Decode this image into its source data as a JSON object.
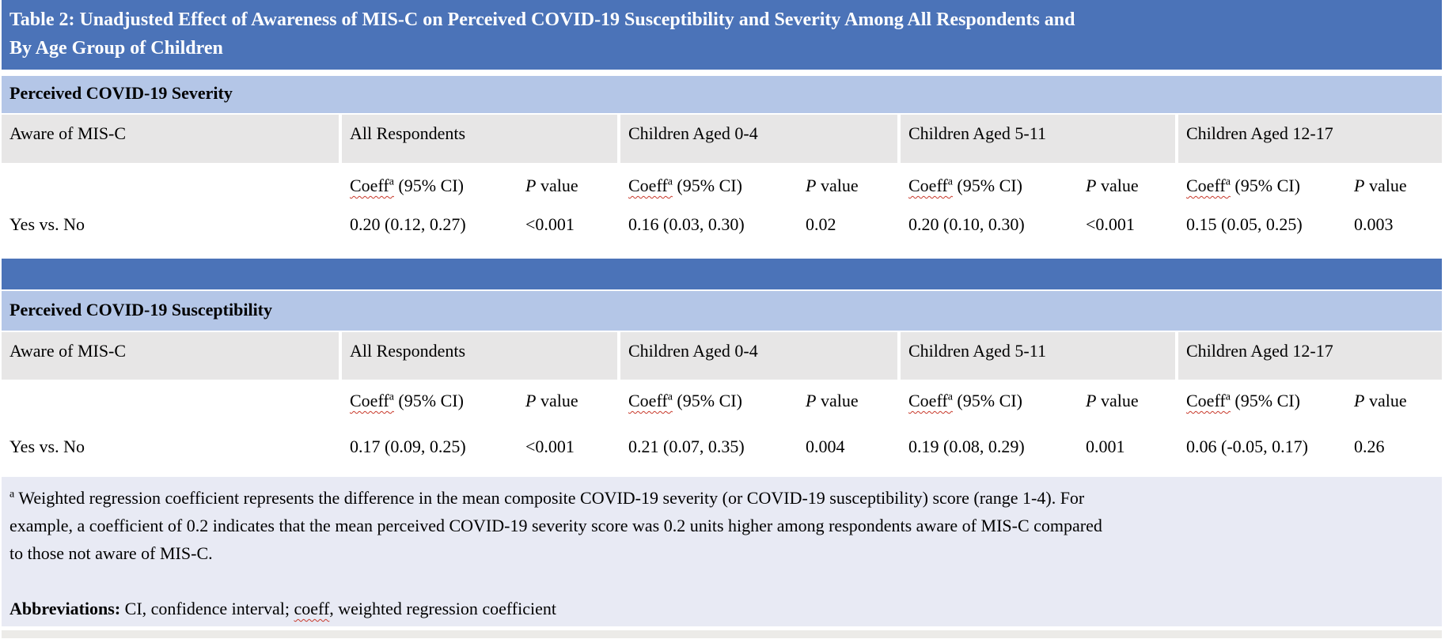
{
  "title_lines": [
    "Table 2: Unadjusted Effect of Awareness of MIS-C on Perceived COVID-19 Susceptibility and Severity Among All Respondents and",
    "By Age Group of Children"
  ],
  "colors": {
    "header_blue": "#4b73b8",
    "band_light_blue": "#b4c6e7",
    "row_gray": "#e7e6e6",
    "footnote_bg": "#e8eaf4",
    "bottom_strip": "#ecebe8",
    "squiggle_red": "#c8392b"
  },
  "sections": [
    {
      "section_label": "Perceived COVID-19 Severity",
      "row_header": "Aware of MIS-C",
      "groups": [
        "All Respondents",
        "Children Aged 0-4",
        "Children Aged 5-11",
        "Children Aged 12-17"
      ],
      "coeff_label": "Coeff",
      "coeff_sup": "a",
      "coeff_rest": " (95% CI)",
      "p_label_italic": "P",
      "p_label_rest": " value",
      "row_label": "Yes vs. No",
      "cells": [
        {
          "coeff": "0.20 (0.12, 0.27)",
          "p": "<0.001"
        },
        {
          "coeff": "0.16 (0.03, 0.30)",
          "p": "0.02"
        },
        {
          "coeff": "0.20 (0.10, 0.30)",
          "p": "<0.001"
        },
        {
          "coeff": "0.15 (0.05, 0.25)",
          "p": "0.003"
        }
      ]
    },
    {
      "section_label": "Perceived COVID-19 Susceptibility",
      "row_header": "Aware of MIS-C",
      "groups": [
        "All Respondents",
        "Children Aged 0-4",
        "Children Aged 5-11",
        "Children Aged 12-17"
      ],
      "coeff_label": "Coeff",
      "coeff_sup": "a",
      "coeff_rest": " (95% CI)",
      "p_label_italic": "P",
      "p_label_rest": " value",
      "row_label": "Yes vs. No",
      "cells": [
        {
          "coeff": "0.17 (0.09, 0.25)",
          "p": "<0.001"
        },
        {
          "coeff": "0.21 (0.07, 0.35)",
          "p": "0.004"
        },
        {
          "coeff": "0.19 (0.08, 0.29)",
          "p": "0.001"
        },
        {
          "coeff": "0.06 (-0.05, 0.17)",
          "p": "0.26"
        }
      ]
    }
  ],
  "footnote": {
    "sup": "a",
    "lines": [
      "Weighted regression coefficient represents the difference in the mean composite COVID-19 severity (or COVID-19 susceptibility) score (range 1-4). For",
      "example, a coefficient of 0.2 indicates that the mean perceived COVID-19 severity score was 0.2 units higher among respondents aware of MIS-C compared",
      "to those not aware of MIS-C."
    ],
    "abbreviations_label": "Abbreviations:",
    "abbreviations_pre": " CI, confidence interval; ",
    "abbreviations_coeff": "coeff",
    "abbreviations_post": ", weighted regression coefficient"
  }
}
